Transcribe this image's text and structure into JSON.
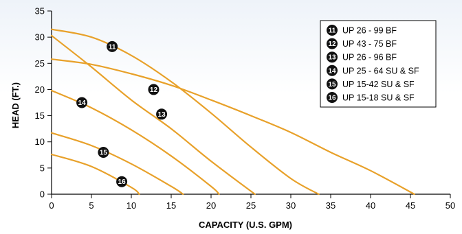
{
  "chart_data": {
    "type": "line",
    "xlabel": "CAPACITY (U.S. GPM)",
    "ylabel": "HEAD (FT.)",
    "xlim": [
      0,
      50
    ],
    "ylim": [
      0,
      35
    ],
    "xticks": [
      "0",
      "5",
      "10",
      "15",
      "20",
      "25",
      "30",
      "35",
      "40",
      "45",
      "50"
    ],
    "yticks": [
      "0",
      "5",
      "10",
      "15",
      "20",
      "25",
      "30",
      "35"
    ],
    "grid": false,
    "legend_position": "top-right",
    "line_color": "#e8a12a",
    "series": [
      {
        "name": "UP 26 - 99 BF",
        "marker": "11",
        "marker_at": [
          7.6,
          28.2
        ],
        "x": [
          0,
          5,
          10,
          15,
          20,
          25,
          30,
          33.5
        ],
        "y": [
          31.5,
          30.0,
          26.5,
          21.5,
          15.5,
          9.0,
          3.0,
          0
        ]
      },
      {
        "name": "UP 43 - 75 BF",
        "marker": "12",
        "marker_at": [
          12.8,
          20.0
        ],
        "x": [
          0,
          5,
          10,
          15,
          20,
          25,
          30,
          35,
          40,
          45.5
        ],
        "y": [
          25.8,
          24.8,
          23.0,
          20.8,
          18.0,
          15.0,
          11.8,
          8.0,
          4.5,
          0
        ]
      },
      {
        "name": "UP 26 - 96 BF",
        "marker": "13",
        "marker_at": [
          13.8,
          15.3
        ],
        "x": [
          0,
          5,
          10,
          15,
          20,
          25.5
        ],
        "y": [
          30.3,
          24.3,
          18.0,
          12.5,
          6.3,
          0
        ]
      },
      {
        "name": "UP 25 - 64 SU & SF",
        "marker": "14",
        "marker_at": [
          3.8,
          17.5
        ],
        "x": [
          0,
          5,
          10,
          15,
          20,
          21
        ],
        "y": [
          19.8,
          16.5,
          12.3,
          7.3,
          1.5,
          0
        ]
      },
      {
        "name": "UP 15-42 SU & SF",
        "marker": "15",
        "marker_at": [
          6.5,
          8.0
        ],
        "x": [
          0,
          5,
          10,
          15,
          16.5
        ],
        "y": [
          11.7,
          9.3,
          5.8,
          1.5,
          0
        ]
      },
      {
        "name": "UP 15-18 SU & SF",
        "marker": "16",
        "marker_at": [
          8.8,
          2.4
        ],
        "x": [
          0,
          5,
          10,
          11
        ],
        "y": [
          7.6,
          5.3,
          1.3,
          0
        ]
      }
    ]
  }
}
